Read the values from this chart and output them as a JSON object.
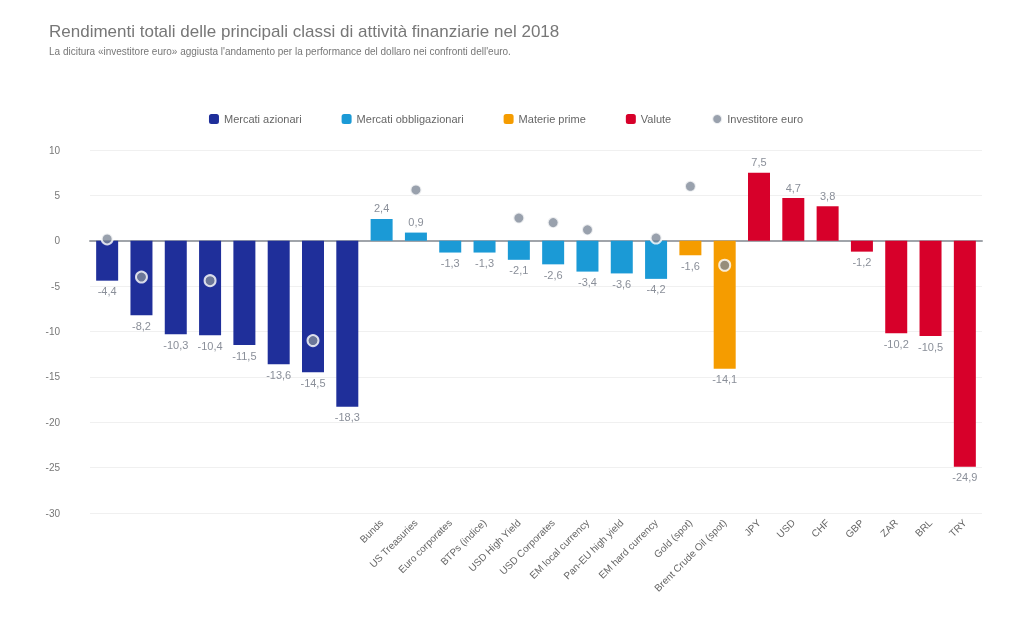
{
  "chart_data": {
    "type": "bar",
    "title": "Rendimenti totali delle principali classi di attività finanziarie nel 2018",
    "subtitle": "La dicitura «investitore euro» aggiusta l'andamento per la performance del dollaro nei confronti dell'euro.",
    "categories": [
      null,
      null,
      null,
      null,
      null,
      null,
      null,
      null,
      "Bunds",
      "US Treasuries",
      "Euro corporates",
      "BTPs (indice)",
      "USD High Yield",
      "USD Corporates",
      "EM local currency",
      "Pan-EU high yield",
      "EM hard currency",
      "Gold (spot)",
      "Brent Crude Oil (spot)",
      "JPY",
      "USD",
      "CHF",
      "GBP",
      "ZAR",
      "BRL",
      "TRY"
    ],
    "series": [
      {
        "name": "Mercati azionari",
        "color": "#1f2f9a",
        "values": [
          -4.4,
          -8.2,
          -10.3,
          -10.4,
          -11.5,
          -13.6,
          -14.5,
          -18.3,
          null,
          null,
          null,
          null,
          null,
          null,
          null,
          null,
          null,
          null,
          null,
          null,
          null,
          null,
          null,
          null,
          null,
          null
        ],
        "value_labels": [
          "-4,4",
          "-8,2",
          "-10,3",
          "-10,4",
          "-11,5",
          "-13,6",
          "-14,5",
          "-18,3",
          null,
          null,
          null,
          null,
          null,
          null,
          null,
          null,
          null,
          null,
          null,
          null,
          null,
          null,
          null,
          null,
          null,
          null
        ]
      },
      {
        "name": "Mercati obbligazionari",
        "color": "#1b9ad6",
        "values": [
          null,
          null,
          null,
          null,
          null,
          null,
          null,
          null,
          2.4,
          0.9,
          -1.3,
          -1.3,
          -2.1,
          -2.6,
          -3.4,
          -3.6,
          -4.2,
          null,
          null,
          null,
          null,
          null,
          null,
          null,
          null,
          null
        ],
        "value_labels": [
          null,
          null,
          null,
          null,
          null,
          null,
          null,
          null,
          "2,4",
          "0,9",
          "-1,3",
          "-1,3",
          "-2,1",
          "-2,6",
          "-3,4",
          "-3,6",
          "-4,2",
          null,
          null,
          null,
          null,
          null,
          null,
          null,
          null,
          null
        ]
      },
      {
        "name": "Materie prime",
        "color": "#f59c00",
        "values": [
          null,
          null,
          null,
          null,
          null,
          null,
          null,
          null,
          null,
          null,
          null,
          null,
          null,
          null,
          null,
          null,
          null,
          -1.6,
          -14.1,
          null,
          null,
          null,
          null,
          null,
          null,
          null
        ],
        "value_labels": [
          null,
          null,
          null,
          null,
          null,
          null,
          null,
          null,
          null,
          null,
          null,
          null,
          null,
          null,
          null,
          null,
          null,
          "-1,6",
          "-14,1",
          null,
          null,
          null,
          null,
          null,
          null,
          null
        ]
      },
      {
        "name": "Valute",
        "color": "#d7002a",
        "values": [
          null,
          null,
          null,
          null,
          null,
          null,
          null,
          null,
          null,
          null,
          null,
          null,
          null,
          null,
          null,
          null,
          null,
          null,
          null,
          7.5,
          4.7,
          3.8,
          -1.2,
          -10.2,
          -10.5,
          -24.9
        ],
        "value_labels": [
          null,
          null,
          null,
          null,
          null,
          null,
          null,
          null,
          null,
          null,
          null,
          null,
          null,
          null,
          null,
          null,
          null,
          null,
          null,
          "7,5",
          "4,7",
          "3,8",
          "-1,2",
          "-10,2",
          "-10,5",
          "-24,9"
        ]
      },
      {
        "name": "Investitore euro",
        "type": "scatter",
        "color": "#7f8a99",
        "values": [
          0.2,
          -4.0,
          null,
          -4.4,
          null,
          null,
          -11.0,
          null,
          null,
          5.6,
          null,
          null,
          2.5,
          2.0,
          1.2,
          null,
          0.3,
          6.0,
          -2.7,
          null,
          null,
          null,
          null,
          null,
          null,
          null
        ]
      }
    ],
    "ylim": [
      -30,
      10
    ],
    "yticks": [
      -30,
      -25,
      -20,
      -15,
      -10,
      -5,
      0,
      5,
      10
    ],
    "grid": "y",
    "legend": "top",
    "marker": "circle"
  }
}
